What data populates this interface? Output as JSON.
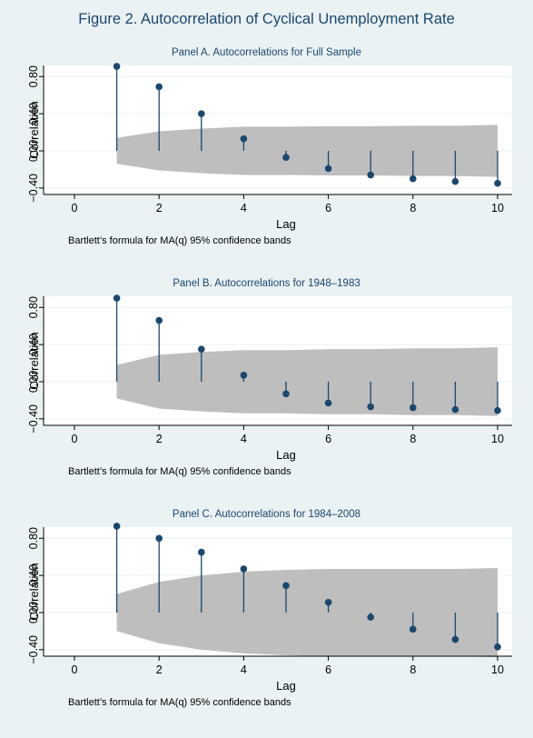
{
  "figure": {
    "title": "Figure 2.  Autocorrelation of Cyclical Unemployment Rate"
  },
  "colors": {
    "page_background": "#eaf2f3",
    "plot_background": "#ffffff",
    "band": "#bebebe",
    "marker": "#1a476f",
    "title_text": "#1a476f"
  },
  "chart_data": [
    {
      "type": "scatter",
      "subtype": "correlogram",
      "title": "Panel A. Autocorrelations for Full Sample",
      "xlabel": "Lag",
      "ylabel": "Correlation",
      "note": "Bartlett’s formula for MA(q) 95% confidence bands",
      "xlim": [
        0,
        10
      ],
      "ylim": [
        -0.4,
        0.8
      ],
      "x_ticks": [
        "0",
        "2",
        "4",
        "6",
        "8",
        "10"
      ],
      "y_ticks": [
        "−0.40",
        "0.00",
        "0.40",
        "0.80"
      ],
      "grid": true,
      "x": [
        1,
        2,
        3,
        4,
        5,
        6,
        7,
        8,
        9,
        10
      ],
      "values": [
        0.91,
        0.69,
        0.4,
        0.13,
        -0.07,
        -0.19,
        -0.26,
        -0.3,
        -0.33,
        -0.35
      ],
      "band_upper": [
        0.14,
        0.21,
        0.24,
        0.26,
        0.26,
        0.265,
        0.265,
        0.27,
        0.27,
        0.28
      ],
      "band_lower": [
        -0.14,
        -0.21,
        -0.24,
        -0.26,
        -0.26,
        -0.265,
        -0.265,
        -0.27,
        -0.27,
        -0.28
      ]
    },
    {
      "type": "scatter",
      "subtype": "correlogram",
      "title": "Panel B. Autocorrelations for 1948–1983",
      "xlabel": "Lag",
      "ylabel": "Correlation",
      "note": "Bartlett’s formula for MA(q) 95% confidence bands",
      "xlim": [
        0,
        10
      ],
      "ylim": [
        -0.4,
        0.8
      ],
      "x_ticks": [
        "0",
        "2",
        "4",
        "6",
        "8",
        "10"
      ],
      "y_ticks": [
        "−0.40",
        "0.00",
        "0.40",
        "0.80"
      ],
      "grid": true,
      "x": [
        1,
        2,
        3,
        4,
        5,
        6,
        7,
        8,
        9,
        10
      ],
      "values": [
        0.9,
        0.66,
        0.35,
        0.07,
        -0.13,
        -0.23,
        -0.27,
        -0.28,
        -0.3,
        -0.31
      ],
      "band_upper": [
        0.18,
        0.29,
        0.32,
        0.34,
        0.34,
        0.35,
        0.35,
        0.36,
        0.36,
        0.37
      ],
      "band_lower": [
        -0.18,
        -0.29,
        -0.32,
        -0.34,
        -0.34,
        -0.35,
        -0.35,
        -0.36,
        -0.36,
        -0.37
      ]
    },
    {
      "type": "scatter",
      "subtype": "correlogram",
      "title": "Panel C. Autocorrelations for 1984–2008",
      "xlabel": "Lag",
      "ylabel": "Correlation",
      "note": "Bartlett’s formula for MA(q) 95% confidence bands",
      "xlim": [
        0,
        10
      ],
      "ylim": [
        -0.4,
        0.8
      ],
      "x_ticks": [
        "0",
        "2",
        "4",
        "6",
        "8",
        "10"
      ],
      "y_ticks": [
        "−0.40",
        "0.00",
        "0.40",
        "0.80"
      ],
      "grid": true,
      "x": [
        1,
        2,
        3,
        4,
        5,
        6,
        7,
        8,
        9,
        10
      ],
      "values": [
        0.93,
        0.8,
        0.65,
        0.47,
        0.29,
        0.11,
        -0.05,
        -0.18,
        -0.29,
        -0.37
      ],
      "band_upper": [
        0.2,
        0.33,
        0.4,
        0.44,
        0.46,
        0.47,
        0.47,
        0.47,
        0.47,
        0.48
      ],
      "band_lower": [
        -0.2,
        -0.33,
        -0.4,
        -0.44,
        -0.46,
        -0.47,
        -0.47,
        -0.47,
        -0.47,
        -0.48
      ]
    }
  ]
}
